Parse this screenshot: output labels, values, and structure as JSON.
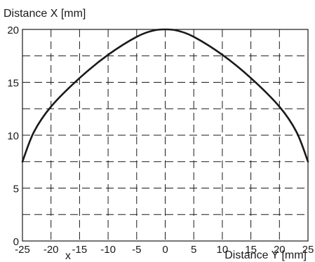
{
  "chart_data": {
    "type": "line",
    "ylabel": "Distance X [mm]",
    "xlabel": "Distance Y [mm]",
    "x_marker": "x",
    "xlim": [
      -25,
      25
    ],
    "ylim": [
      0,
      20
    ],
    "x_ticks": [
      -25,
      -20,
      -15,
      -10,
      -5,
      0,
      5,
      10,
      15,
      20,
      25
    ],
    "y_ticks": [
      0,
      5,
      10,
      15,
      20
    ],
    "x_grid": [
      -20,
      -15,
      -10,
      -5,
      0,
      5,
      10,
      15,
      20
    ],
    "y_grid": [
      2.5,
      5,
      7.5,
      10,
      12.5,
      15,
      17.5
    ],
    "grid": "dashed",
    "series": [
      {
        "x": [
          -25,
          -23,
          -20,
          -15,
          -10,
          -5,
          -2,
          0,
          2,
          5,
          10,
          15,
          20,
          23,
          25
        ],
        "y": [
          7.5,
          10.3,
          12.7,
          15.4,
          17.6,
          19.3,
          19.9,
          20,
          19.9,
          19.3,
          17.6,
          15.4,
          12.7,
          10.3,
          7.5
        ]
      }
    ]
  }
}
